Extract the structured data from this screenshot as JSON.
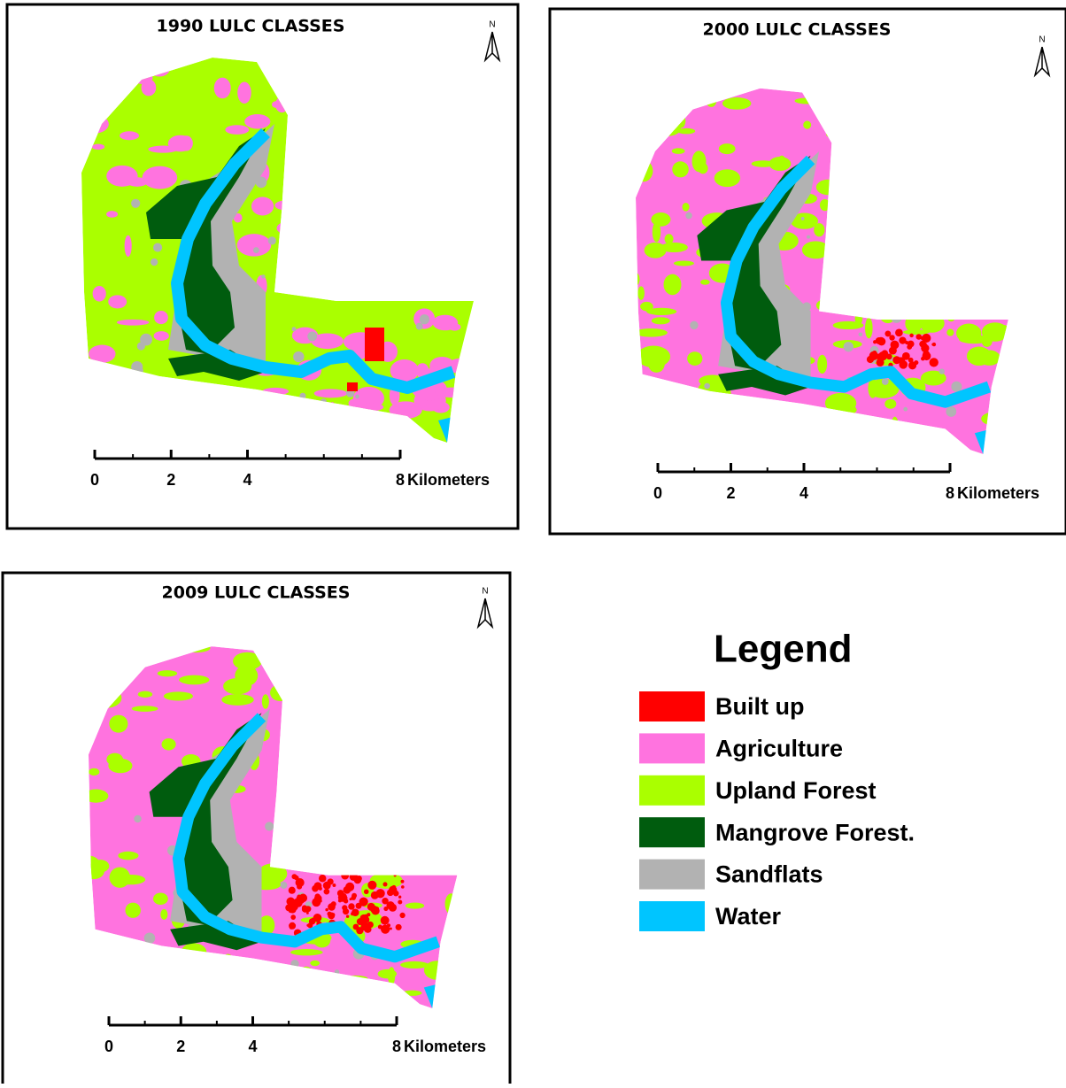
{
  "maps": [
    {
      "title": "1990 LULC CLASSES"
    },
    {
      "title": "2000 LULC CLASSES"
    },
    {
      "title": "2009 LULC CLASSES"
    }
  ],
  "north_label": "N",
  "scale": {
    "ticks": [
      0,
      2,
      4,
      8
    ],
    "unit": "Kilometers"
  },
  "legend": {
    "title": "Legend",
    "items": [
      {
        "label": "Built up",
        "color": "#ff0000"
      },
      {
        "label": "Agriculture",
        "color": "#ff73df"
      },
      {
        "label": "Upland Forest",
        "color": "#aaff00"
      },
      {
        "label": "Mangrove Forest.",
        "color": "#005c0e"
      },
      {
        "label": "Sandflats",
        "color": "#b2b2b2"
      },
      {
        "label": "Water",
        "color": "#00c5ff"
      }
    ]
  }
}
